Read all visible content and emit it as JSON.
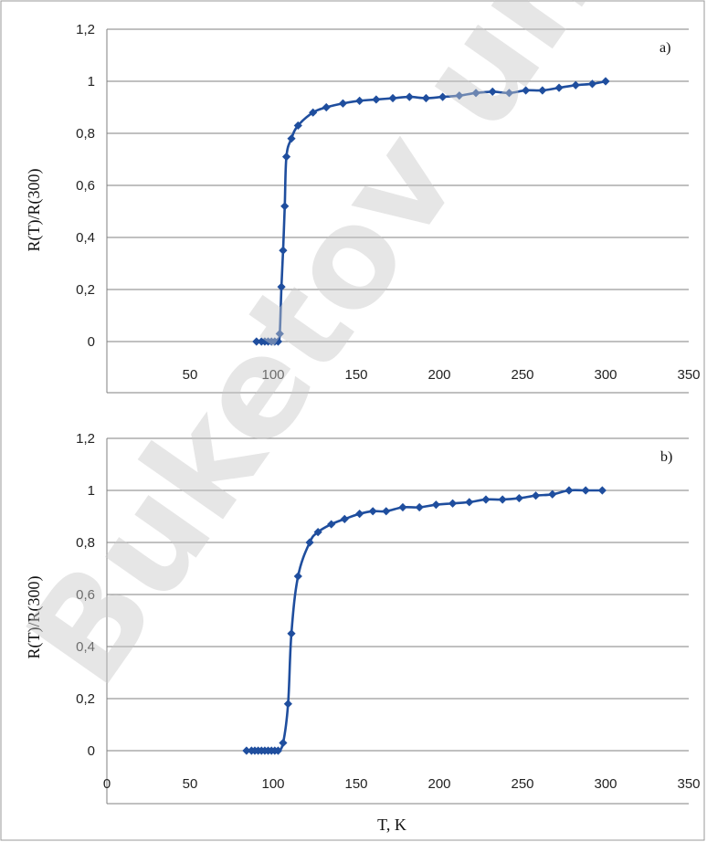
{
  "figure": {
    "xlabel_bottom": "T, K",
    "watermark_text": "Buketov unive",
    "line_color": "#1f4e9e",
    "grid_color": "#808080"
  },
  "chart_data": [
    {
      "type": "line",
      "panel_label": "a)",
      "title": "",
      "xlabel": "",
      "ylabel": "R(T)/R(300)",
      "xlim": [
        0,
        350
      ],
      "ylim": [
        0,
        1.2
      ],
      "x_ticks": [
        "50",
        "100",
        "150",
        "200",
        "250",
        "300",
        "350"
      ],
      "y_ticks": [
        "0",
        "0,2",
        "0,4",
        "0,6",
        "0,8",
        "1",
        "1,2"
      ],
      "grid": "horizontal",
      "series": [
        {
          "x": [
            90,
            93,
            95,
            97,
            99,
            101,
            103,
            104,
            105,
            106,
            107,
            108,
            111,
            115,
            124,
            132,
            142,
            152,
            162,
            172,
            182,
            192,
            202,
            212,
            222,
            232,
            242,
            252,
            262,
            272,
            282,
            292,
            300
          ],
          "y": [
            0,
            0,
            0,
            0,
            0,
            0,
            0,
            0.03,
            0.21,
            0.35,
            0.52,
            0.71,
            0.78,
            0.83,
            0.88,
            0.9,
            0.915,
            0.925,
            0.93,
            0.935,
            0.94,
            0.935,
            0.94,
            0.945,
            0.955,
            0.96,
            0.955,
            0.965,
            0.965,
            0.975,
            0.985,
            0.99,
            1.0
          ]
        }
      ]
    },
    {
      "type": "line",
      "panel_label": "b)",
      "title": "",
      "xlabel": "T, K",
      "ylabel": "R(T)/R(300)",
      "xlim": [
        0,
        350
      ],
      "ylim": [
        0,
        1.2
      ],
      "x_ticks": [
        "0",
        "50",
        "100",
        "150",
        "200",
        "250",
        "300",
        "350"
      ],
      "y_ticks": [
        "0",
        "0,2",
        "0,4",
        "0,6",
        "0,8",
        "1",
        "1,2"
      ],
      "grid": "horizontal",
      "series": [
        {
          "x": [
            84,
            87,
            89,
            91,
            93,
            95,
            97,
            99,
            101,
            103,
            106,
            109,
            111,
            115,
            122,
            127,
            135,
            143,
            152,
            160,
            168,
            178,
            188,
            198,
            208,
            218,
            228,
            238,
            248,
            258,
            268,
            278,
            288,
            298
          ],
          "y": [
            0,
            0,
            0,
            0,
            0,
            0,
            0,
            0,
            0,
            0,
            0.03,
            0.18,
            0.45,
            0.67,
            0.8,
            0.84,
            0.87,
            0.89,
            0.91,
            0.92,
            0.92,
            0.935,
            0.935,
            0.945,
            0.95,
            0.955,
            0.965,
            0.965,
            0.97,
            0.98,
            0.985,
            1.0,
            1.0,
            1.0
          ]
        }
      ]
    }
  ]
}
